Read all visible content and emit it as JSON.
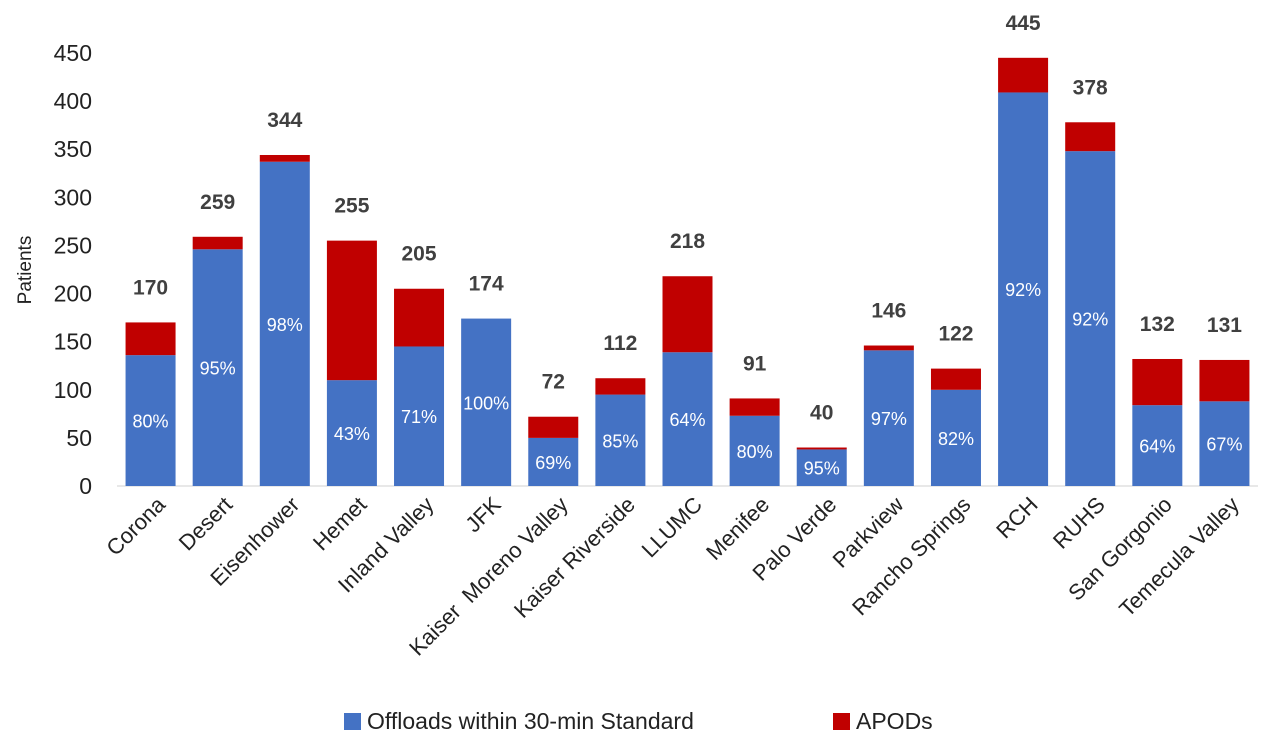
{
  "chart_data": {
    "type": "bar",
    "stacked": true,
    "ylabel": "Patients",
    "xlabel": "",
    "ylim": [
      0,
      450
    ],
    "yticks": [
      0,
      50,
      100,
      150,
      200,
      250,
      300,
      350,
      400,
      450
    ],
    "grid": false,
    "legend_position": "bottom",
    "categories": [
      "Corona",
      "Desert",
      "Eisenhower",
      "Hemet",
      "Inland Valley",
      "JFK",
      "Kaiser  Moreno Valley",
      "Kaiser Riverside",
      "LLUMC",
      "Menifee",
      "Palo Verde",
      "Parkview",
      "Rancho Springs",
      "RCH",
      "RUHS",
      "San Gorgonio",
      "Temecula Valley"
    ],
    "series": [
      {
        "name": "Offloads within 30-min Standard",
        "color": "#4472C4",
        "values": [
          136,
          246,
          337,
          110,
          145,
          174,
          50,
          95,
          139,
          73,
          38,
          141,
          100,
          409,
          348,
          84,
          88
        ]
      },
      {
        "name": "APODs",
        "color": "#C00000",
        "values": [
          34,
          13,
          7,
          145,
          60,
          0,
          22,
          17,
          79,
          18,
          2,
          5,
          22,
          36,
          30,
          48,
          43
        ]
      }
    ],
    "totals": [
      "170",
      "259",
      "344",
      "255",
      "205",
      "174",
      "72",
      "112",
      "218",
      "91",
      "40",
      "146",
      "122",
      "445",
      "378",
      "132",
      "131"
    ],
    "percent_labels": [
      "80%",
      "95%",
      "98%",
      "43%",
      "71%",
      "100%",
      "69%",
      "85%",
      "64%",
      "80%",
      "95%",
      "97%",
      "82%",
      "92%",
      "92%",
      "64%",
      "67%"
    ]
  }
}
